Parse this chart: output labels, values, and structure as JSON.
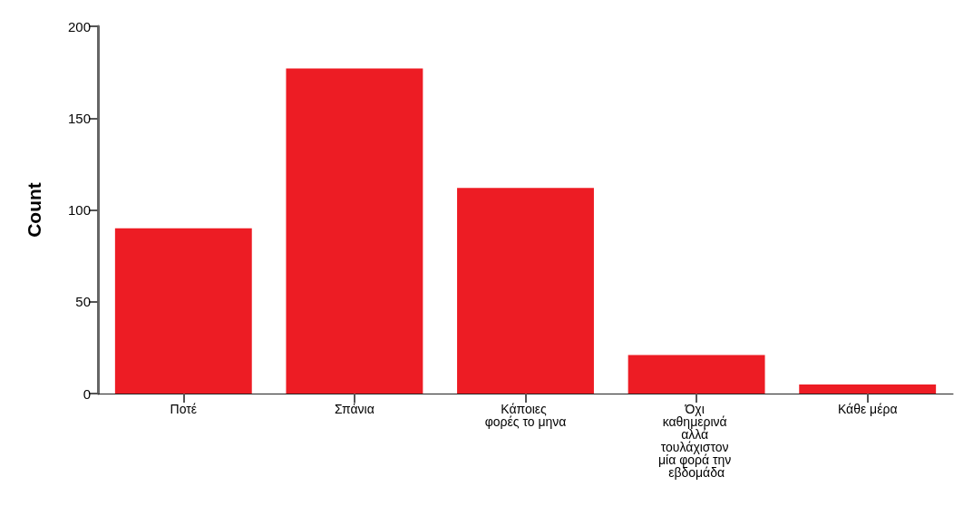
{
  "chart_data": {
    "type": "bar",
    "ylabel": "Count",
    "categories": [
      "Ποτέ",
      "Σπάνια",
      "Κάποιες φορές το μηνα",
      "Όχι καθημερινά αλλά τουλάχιστον μία φορά την εβδομάδα",
      "Κάθε μέρα"
    ],
    "values": [
      90,
      177,
      112,
      21,
      5
    ],
    "color": "#ed1c24",
    "ylim": [
      0,
      200
    ],
    "yticks": [
      0,
      50,
      100,
      150,
      200
    ],
    "grid": false
  }
}
